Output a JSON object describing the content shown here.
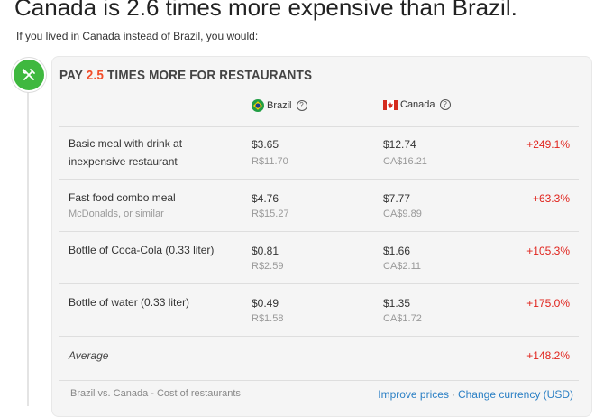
{
  "headline": "Canada is 2.6 times more expensive than Brazil.",
  "subline": "If you lived in Canada instead of Brazil, you would:",
  "category": {
    "icon": "fork-knife-icon",
    "title_prefix": "PAY ",
    "multiplier": "2.5",
    "title_suffix": " TIMES MORE FOR RESTAURANTS"
  },
  "columns": {
    "country_a": {
      "name": "Brazil",
      "flag": "brazil-flag-icon"
    },
    "country_b": {
      "name": "Canada",
      "flag": "canada-flag-icon"
    },
    "help_glyph": "?"
  },
  "rows": [
    {
      "name": "Basic meal with drink at inexpensive restaurant",
      "sub": "",
      "a_usd": "$3.65",
      "a_local": "R$11.70",
      "b_usd": "$12.74",
      "b_local": "CA$16.21",
      "diff": "+249.1%"
    },
    {
      "name": "Fast food combo meal",
      "sub": "McDonalds, or similar",
      "a_usd": "$4.76",
      "a_local": "R$15.27",
      "b_usd": "$7.77",
      "b_local": "CA$9.89",
      "diff": "+63.3%"
    },
    {
      "name": "Bottle of Coca-Cola (0.33 liter)",
      "sub": "",
      "a_usd": "$0.81",
      "a_local": "R$2.59",
      "b_usd": "$1.66",
      "b_local": "CA$2.11",
      "diff": "+105.3%"
    },
    {
      "name": "Bottle of water (0.33 liter)",
      "sub": "",
      "a_usd": "$0.49",
      "a_local": "R$1.58",
      "b_usd": "$1.35",
      "b_local": "CA$1.72",
      "diff": "+175.0%"
    }
  ],
  "average": {
    "label": "Average",
    "diff": "+148.2%"
  },
  "footer": {
    "caption": "Brazil vs. Canada - Cost of restaurants",
    "improve_link": "Improve prices",
    "separator": "·",
    "currency_link": "Change currency (USD)"
  },
  "colors": {
    "accent_green": "#3fb83f",
    "multiplier_red": "#f24e2b",
    "diff_red": "#e0231c",
    "link_blue": "#2a7fc4"
  }
}
